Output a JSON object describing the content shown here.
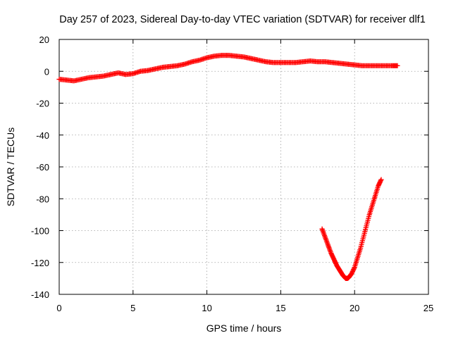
{
  "chart_data": {
    "type": "scatter",
    "title": "Day 257 of 2023, Sidereal Day-to-day VTEC variation (SDTVAR) for receiver dlf1",
    "xlabel": "GPS time / hours",
    "ylabel": "SDTVAR / TECUs",
    "xlim": [
      0,
      25
    ],
    "ylim": [
      -140,
      20
    ],
    "xticks": [
      "0",
      "5",
      "10",
      "15",
      "20",
      "25"
    ],
    "yticks": [
      "20",
      "0",
      "-20",
      "-40",
      "-60",
      "-80",
      "-100",
      "-120",
      "-140"
    ],
    "grid": true,
    "marker": "plus",
    "series": [
      {
        "color": "#ff0000",
        "x": [
          0.0,
          0.5,
          1.0,
          1.5,
          2.0,
          2.5,
          3.0,
          3.5,
          4.0,
          4.5,
          5.0,
          5.5,
          6.0,
          6.5,
          7.0,
          7.5,
          8.0,
          8.5,
          9.0,
          9.5,
          10.0,
          10.5,
          11.0,
          11.5,
          12.0,
          12.5,
          13.0,
          13.5,
          14.0,
          14.5,
          15.0,
          15.5,
          16.0,
          16.5,
          17.0,
          17.5,
          18.0,
          18.5,
          19.0,
          19.5,
          20.0,
          20.5,
          21.0,
          21.5,
          22.0,
          22.5,
          22.9
        ],
        "y": [
          -5,
          -5.5,
          -6,
          -5,
          -4,
          -3.5,
          -3,
          -2,
          -1,
          -2,
          -1.5,
          0,
          0.5,
          1.5,
          2.5,
          3,
          3.5,
          4.5,
          6,
          7,
          8.5,
          9.5,
          10,
          10,
          9.5,
          9,
          8,
          7,
          6,
          5.5,
          5.5,
          5.5,
          5.5,
          6,
          6.5,
          6,
          6,
          5.5,
          5,
          4.5,
          4,
          3.5,
          3.5,
          3.5,
          3.5,
          3.5,
          3.5
        ]
      },
      {
        "color": "#ff0000",
        "x": [
          17.8,
          18.0,
          18.2,
          18.4,
          18.6,
          18.8,
          19.0,
          19.2,
          19.4,
          19.5,
          19.6,
          19.8,
          20.0,
          20.2,
          20.4,
          20.6,
          20.8,
          21.0,
          21.2,
          21.4,
          21.6,
          21.8
        ],
        "y": [
          -99,
          -104,
          -109,
          -114,
          -118,
          -122,
          -125,
          -128,
          -130,
          -130,
          -129.5,
          -127,
          -123,
          -117,
          -111,
          -104,
          -97,
          -90,
          -84,
          -78,
          -72,
          -68
        ]
      }
    ]
  }
}
